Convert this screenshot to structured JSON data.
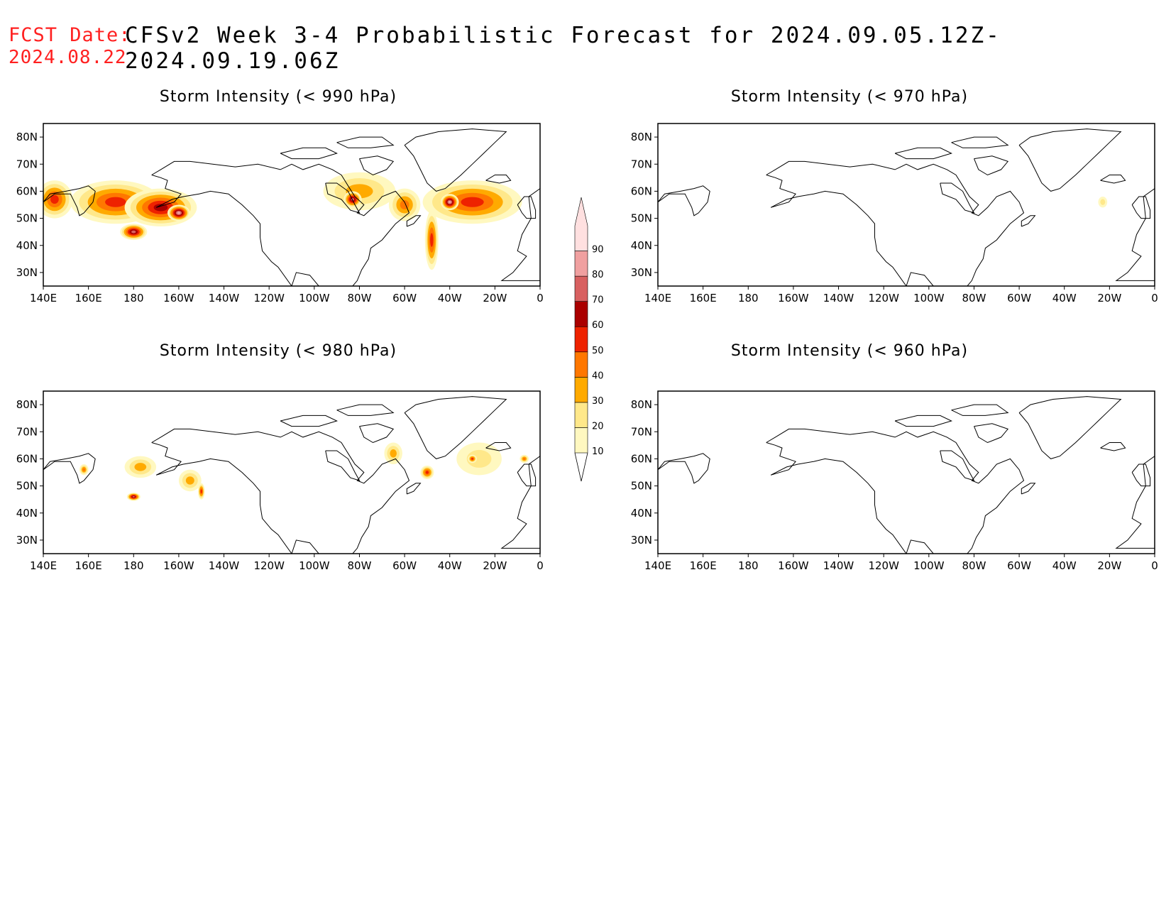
{
  "header": {
    "fcst_label": "FCST Date:",
    "fcst_date": "2024.08.22",
    "title": "CFSv2 Week 3-4 Probabilistic Forecast for 2024.09.05.12Z-2024.09.19.06Z"
  },
  "axes": {
    "lat_labels": [
      "80N",
      "70N",
      "60N",
      "50N",
      "40N",
      "30N"
    ],
    "lat_values": [
      80,
      70,
      60,
      50,
      40,
      30
    ],
    "lon_labels": [
      "140E",
      "160E",
      "180",
      "160W",
      "140W",
      "120W",
      "100W",
      "80W",
      "60W",
      "40W",
      "20W",
      "0"
    ],
    "lon_range": [
      140,
      360
    ],
    "lat_range": [
      25,
      85
    ]
  },
  "colorbar": {
    "levels": [
      "10",
      "20",
      "30",
      "40",
      "50",
      "60",
      "70",
      "80",
      "90"
    ],
    "colors": [
      "#fff8c0",
      "#ffe88a",
      "#ffaa00",
      "#ff7700",
      "#ee2200",
      "#aa0000",
      "#d86060",
      "#f0a0a0",
      "#ffe0e0"
    ]
  },
  "panels": [
    {
      "title": "Storm Intensity (< 990 hPa)",
      "blobs": [
        {
          "lon": 145,
          "lat": 57,
          "rlon": 8,
          "rlat": 7,
          "level": 4
        },
        {
          "lon": 172,
          "lat": 56,
          "rlon": 20,
          "rlat": 8,
          "level": 4
        },
        {
          "lon": 192,
          "lat": 54,
          "rlon": 16,
          "rlat": 7,
          "level": 5
        },
        {
          "lon": 180,
          "lat": 45,
          "rlon": 6,
          "rlat": 3,
          "level": 6
        },
        {
          "lon": 200,
          "lat": 52,
          "rlon": 5,
          "rlat": 3,
          "level": 7
        },
        {
          "lon": 280,
          "lat": 60,
          "rlon": 16,
          "rlat": 7,
          "level": 2
        },
        {
          "lon": 277,
          "lat": 57,
          "rlon": 4,
          "rlat": 3,
          "level": 6
        },
        {
          "lon": 300,
          "lat": 55,
          "rlon": 7,
          "rlat": 6,
          "level": 3
        },
        {
          "lon": 330,
          "lat": 56,
          "rlon": 22,
          "rlat": 8,
          "level": 4
        },
        {
          "lon": 312,
          "lat": 42,
          "rlon": 3,
          "rlat": 11,
          "level": 4
        },
        {
          "lon": 320,
          "lat": 56,
          "rlon": 4,
          "rlat": 3,
          "level": 7
        }
      ]
    },
    {
      "title": "Storm Intensity (< 970 hPa)",
      "blobs": [
        {
          "lon": 337,
          "lat": 56,
          "rlon": 2,
          "rlat": 2,
          "level": 1
        }
      ]
    },
    {
      "title": "Storm Intensity (< 980 hPa)",
      "blobs": [
        {
          "lon": 158,
          "lat": 56,
          "rlon": 2,
          "rlat": 2,
          "level": 3
        },
        {
          "lon": 183,
          "lat": 57,
          "rlon": 7,
          "rlat": 4,
          "level": 2
        },
        {
          "lon": 180,
          "lat": 46,
          "rlon": 3,
          "rlat": 1.5,
          "level": 6
        },
        {
          "lon": 205,
          "lat": 52,
          "rlon": 5,
          "rlat": 4,
          "level": 2
        },
        {
          "lon": 210,
          "lat": 48,
          "rlon": 1.5,
          "rlat": 3,
          "level": 4
        },
        {
          "lon": 295,
          "lat": 62,
          "rlon": 4,
          "rlat": 4,
          "level": 2
        },
        {
          "lon": 310,
          "lat": 55,
          "rlon": 3,
          "rlat": 2.5,
          "level": 4
        },
        {
          "lon": 333,
          "lat": 60,
          "rlon": 10,
          "rlat": 6,
          "level": 1
        },
        {
          "lon": 330,
          "lat": 60,
          "rlon": 2,
          "rlat": 1.5,
          "level": 4
        },
        {
          "lon": 353,
          "lat": 60,
          "rlon": 2,
          "rlat": 1.5,
          "level": 3
        }
      ]
    },
    {
      "title": "Storm Intensity (< 960 hPa)",
      "blobs": []
    }
  ]
}
